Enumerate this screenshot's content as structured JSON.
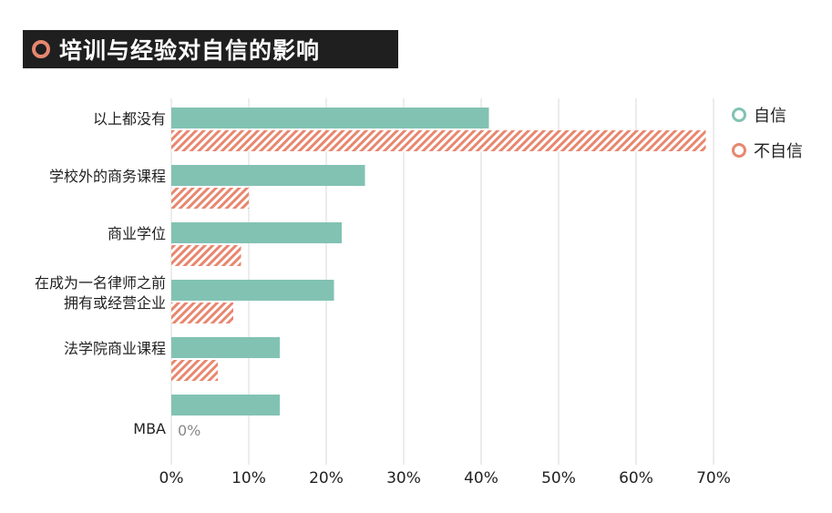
{
  "title": "培训与经验对自信的影响",
  "colors": {
    "confident": "#82c2b3",
    "not_confident": "#e8876f",
    "title_bg": "#1f1f1f",
    "grid": "#d9d9d9"
  },
  "chart_data": {
    "type": "bar",
    "orientation": "horizontal",
    "title": "培训与经验对自信的影响",
    "categories": [
      "以上都没有",
      "学校外的商务课程",
      "商业学位",
      "在成为一名律师之前拥有或经营企业",
      "法学院商业课程",
      "MBA"
    ],
    "category_lines": [
      [
        "以上都没有"
      ],
      [
        "学校外的商务课程"
      ],
      [
        "商业学位"
      ],
      [
        "在成为一名律师之前",
        "拥有或经营企业"
      ],
      [
        "法学院商业课程"
      ],
      [
        "MBA"
      ]
    ],
    "series": [
      {
        "name": "自信",
        "values": [
          41,
          25,
          22,
          21,
          14,
          14
        ],
        "style": "solid"
      },
      {
        "name": "不自信",
        "values": [
          69,
          10,
          9,
          8,
          6,
          0
        ],
        "style": "hatched"
      }
    ],
    "data_labels": [
      {
        "category": "MBA",
        "series": "不自信",
        "text": "0%"
      }
    ],
    "xlim": [
      0,
      70
    ],
    "x_ticks": [
      "0%",
      "10%",
      "20%",
      "30%",
      "40%",
      "50%",
      "60%",
      "70%"
    ],
    "grid": "vertical",
    "legend_position": "top-right"
  }
}
